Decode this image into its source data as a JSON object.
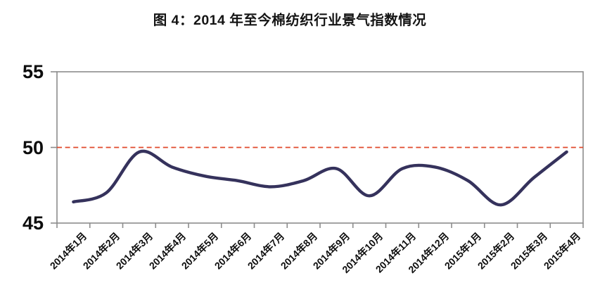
{
  "title": "图 4：2014 年至今棉纺织行业景气指数情况",
  "colors": {
    "line": "#35325c",
    "reference_line": "#e0492b",
    "axis": "#8c8c8c",
    "border_light": "#a9a9a9",
    "text": "#0d0d0d"
  },
  "chart_data": {
    "type": "line",
    "title": "图 4：2014 年至今棉纺织行业景气指数情况",
    "categories": [
      "2014年1月",
      "2014年2月",
      "2014年3月",
      "2014年4月",
      "2014年5月",
      "2014年6月",
      "2014年7月",
      "2014年8月",
      "2014年9月",
      "2014年10月",
      "2014年11月",
      "2014年12月",
      "2015年1月",
      "2015年2月",
      "2015年3月",
      "2015年4月"
    ],
    "series": [
      {
        "name": "棉纺织行业景气指数",
        "values": [
          46.4,
          47.0,
          49.7,
          48.7,
          48.1,
          47.8,
          47.4,
          47.8,
          48.6,
          46.8,
          48.6,
          48.7,
          47.8,
          46.2,
          48.0,
          49.7
        ]
      }
    ],
    "xlabel": "",
    "ylabel": "",
    "ylim": [
      45,
      55
    ],
    "yticks": [
      45,
      50,
      55
    ],
    "reference_line": 50,
    "grid": false,
    "legend_position": "none",
    "smooth": true
  }
}
